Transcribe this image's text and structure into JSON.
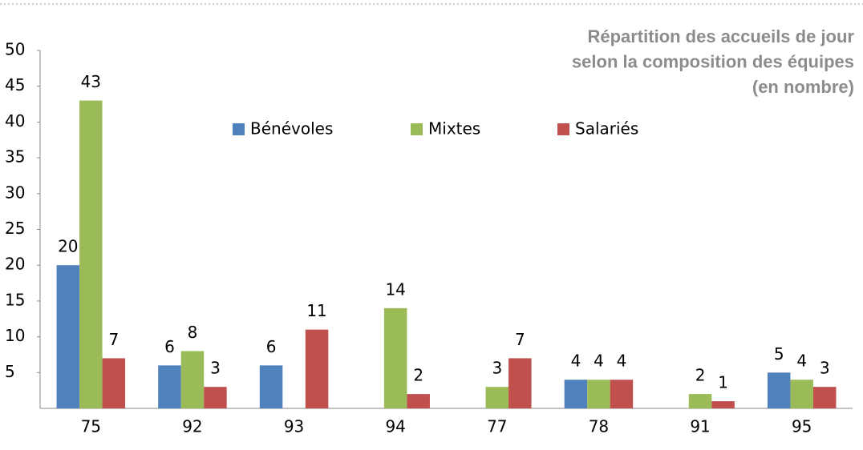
{
  "chart_data": {
    "type": "bar",
    "title": [
      "Répartition des accueils de jour",
      "selon la composition des équipes",
      "(en nombre)"
    ],
    "categories": [
      "75",
      "92",
      "93",
      "94",
      "77",
      "78",
      "91",
      "95"
    ],
    "series": [
      {
        "name": "Bénévoles",
        "color": "#4f81bd",
        "values": [
          20,
          6,
          6,
          null,
          null,
          4,
          null,
          5
        ]
      },
      {
        "name": "Mixtes",
        "color": "#9bbb59",
        "values": [
          43,
          8,
          null,
          14,
          3,
          4,
          2,
          4
        ]
      },
      {
        "name": "Salariés",
        "color": "#c0504d",
        "values": [
          7,
          3,
          11,
          2,
          7,
          4,
          1,
          3
        ]
      }
    ],
    "ylim": [
      0,
      50
    ],
    "yticks": [
      5,
      10,
      15,
      20,
      25,
      30,
      35,
      40,
      45,
      50
    ],
    "grid": false,
    "legend": "top"
  }
}
